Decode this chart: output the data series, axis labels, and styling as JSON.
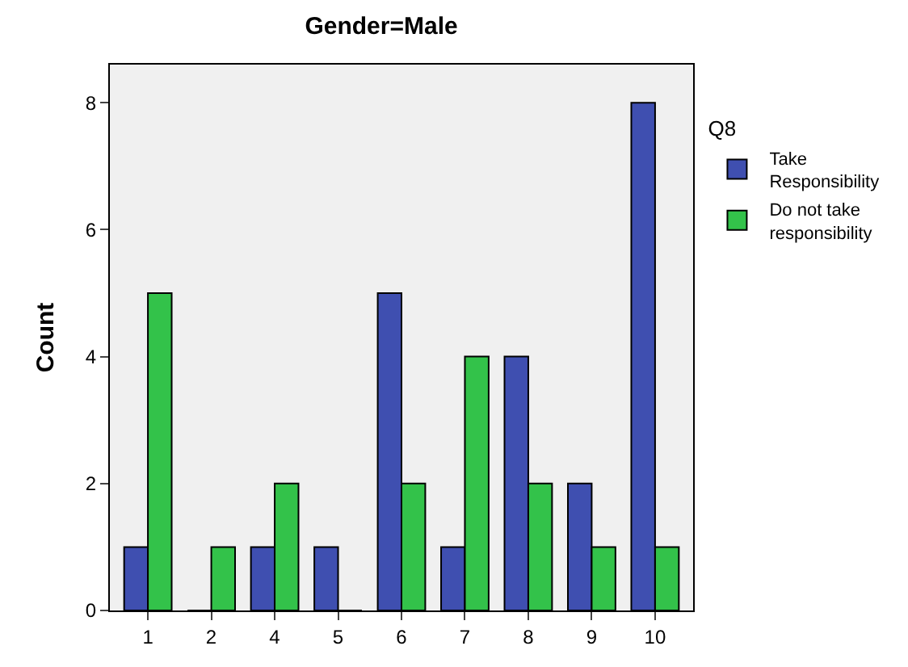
{
  "chart_data": {
    "type": "bar",
    "title": "Gender=Male",
    "ylabel": "Count",
    "legend_title": "Q8",
    "categories": [
      "1",
      "2",
      "4",
      "5",
      "6",
      "7",
      "8",
      "9",
      "10"
    ],
    "series": [
      {
        "name": "Take Responsibility",
        "color": "#3f4fb0",
        "values": [
          1,
          0,
          1,
          1,
          5,
          1,
          4,
          2,
          8
        ]
      },
      {
        "name": "Do not take responsibility",
        "color": "#33c24a",
        "values": [
          5,
          1,
          2,
          0,
          2,
          4,
          2,
          1,
          1
        ]
      }
    ],
    "ylim": [
      0,
      8.6
    ],
    "yticks": [
      0,
      2,
      4,
      6,
      8
    ],
    "grid": false,
    "legend": "top right"
  }
}
